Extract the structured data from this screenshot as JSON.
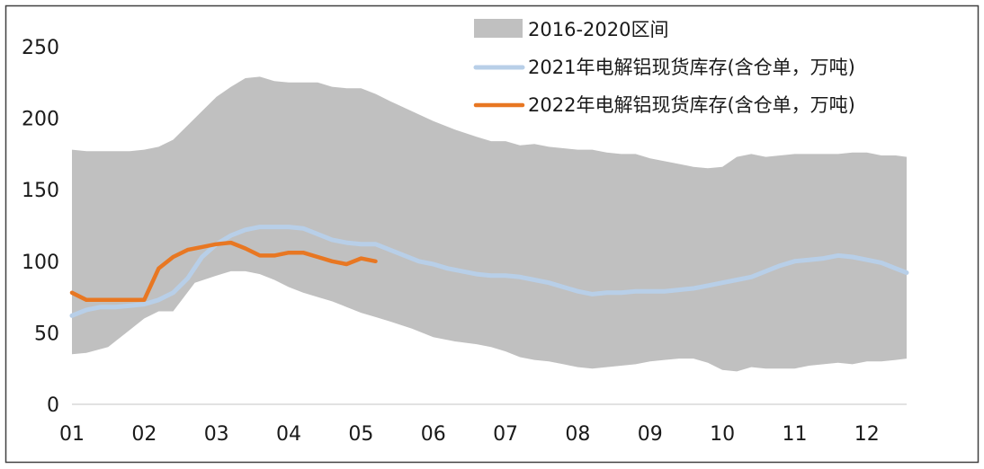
{
  "chart_data": {
    "type": "area",
    "title": "",
    "xlabel": "",
    "ylabel": "",
    "x_ticks": [
      "01",
      "02",
      "03",
      "04",
      "05",
      "06",
      "07",
      "08",
      "09",
      "10",
      "11",
      "12"
    ],
    "y_ticks": [
      0,
      50,
      100,
      150,
      200,
      250
    ],
    "ylim": [
      0,
      250
    ],
    "xlim": [
      1,
      12.55
    ],
    "grid": false,
    "legend_position": "top-right",
    "colors": {
      "band": "#c0c0c0",
      "series_2021": "#b8cfe8",
      "series_2022": "#e87722",
      "axis": "#d9d9d9",
      "border": "#404040"
    },
    "band": {
      "name": "2016-2020区间",
      "x": [
        1.0,
        1.2,
        1.5,
        1.8,
        2.0,
        2.2,
        2.4,
        2.7,
        3.0,
        3.2,
        3.4,
        3.6,
        3.8,
        4.0,
        4.2,
        4.4,
        4.6,
        4.8,
        5.0,
        5.2,
        5.4,
        5.7,
        6.0,
        6.3,
        6.6,
        6.8,
        7.0,
        7.2,
        7.4,
        7.6,
        7.8,
        8.0,
        8.2,
        8.4,
        8.6,
        8.8,
        9.0,
        9.2,
        9.4,
        9.6,
        9.8,
        10.0,
        10.2,
        10.4,
        10.6,
        10.8,
        11.0,
        11.2,
        11.4,
        11.6,
        11.8,
        12.0,
        12.2,
        12.4,
        12.55
      ],
      "upper": [
        178,
        177,
        177,
        177,
        178,
        180,
        185,
        200,
        215,
        222,
        228,
        229,
        226,
        225,
        225,
        225,
        222,
        221,
        221,
        217,
        212,
        205,
        198,
        192,
        187,
        184,
        184,
        181,
        182,
        180,
        179,
        178,
        178,
        176,
        175,
        175,
        172,
        170,
        168,
        166,
        165,
        166,
        173,
        175,
        173,
        174,
        175,
        175,
        175,
        175,
        176,
        176,
        174,
        174,
        173
      ],
      "lower": [
        35,
        36,
        40,
        52,
        60,
        65,
        65,
        85,
        90,
        93,
        93,
        91,
        87,
        82,
        78,
        75,
        72,
        68,
        64,
        61,
        58,
        53,
        47,
        44,
        42,
        40,
        37,
        33,
        31,
        30,
        28,
        26,
        25,
        26,
        27,
        28,
        30,
        31,
        32,
        32,
        29,
        24,
        23,
        26,
        25,
        25,
        25,
        27,
        28,
        29,
        28,
        30,
        30,
        31,
        32
      ]
    },
    "series": [
      {
        "name": "2021年电解铝现货库存(含仓单，万吨)",
        "x": [
          1.0,
          1.2,
          1.4,
          1.6,
          1.8,
          2.0,
          2.2,
          2.4,
          2.6,
          2.8,
          3.0,
          3.2,
          3.4,
          3.6,
          3.8,
          4.0,
          4.2,
          4.4,
          4.6,
          4.8,
          5.0,
          5.2,
          5.4,
          5.6,
          5.8,
          6.0,
          6.2,
          6.4,
          6.6,
          6.8,
          7.0,
          7.2,
          7.4,
          7.6,
          7.8,
          8.0,
          8.2,
          8.4,
          8.6,
          8.8,
          9.0,
          9.2,
          9.4,
          9.6,
          9.8,
          10.0,
          10.2,
          10.4,
          10.6,
          10.8,
          11.0,
          11.2,
          11.4,
          11.6,
          11.8,
          12.0,
          12.2,
          12.4,
          12.55
        ],
        "y": [
          62,
          66,
          68,
          68,
          69,
          70,
          73,
          78,
          88,
          103,
          112,
          118,
          122,
          124,
          124,
          124,
          123,
          119,
          115,
          113,
          112,
          112,
          108,
          104,
          100,
          98,
          95,
          93,
          91,
          90,
          90,
          89,
          87,
          85,
          82,
          79,
          77,
          78,
          78,
          79,
          79,
          79,
          80,
          81,
          83,
          85,
          87,
          89,
          93,
          97,
          100,
          101,
          102,
          104,
          103,
          101,
          99,
          95,
          92
        ]
      },
      {
        "name": "2022年电解铝现货库存(含仓单，万吨)",
        "x": [
          1.0,
          1.2,
          1.4,
          1.6,
          1.8,
          2.0,
          2.2,
          2.4,
          2.6,
          2.8,
          3.0,
          3.2,
          3.4,
          3.6,
          3.8,
          4.0,
          4.2,
          4.4,
          4.6,
          4.8,
          5.0,
          5.2
        ],
        "y": [
          78,
          73,
          73,
          73,
          73,
          73,
          95,
          103,
          108,
          110,
          112,
          113,
          109,
          104,
          104,
          106,
          106,
          103,
          100,
          98,
          102,
          100
        ]
      }
    ]
  }
}
